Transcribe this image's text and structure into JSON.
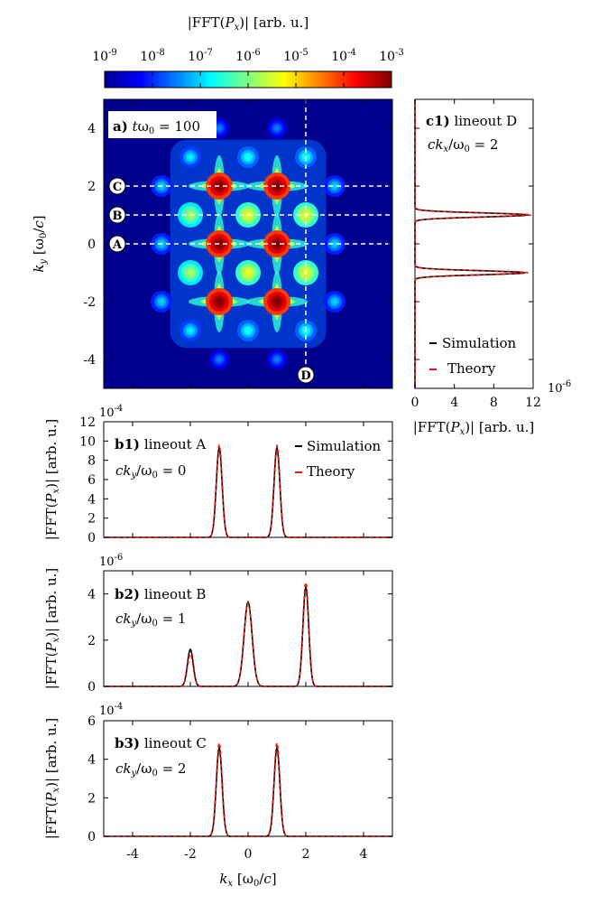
{
  "chart_data": [
    {
      "id": "colorbar",
      "type": "colorbar",
      "title": "|FFT(P_x)| [arb. u.]",
      "scale": "log",
      "range": [
        1e-09,
        0.001
      ],
      "tick_labels": [
        "10-9",
        "10-8",
        "10-7",
        "10-6",
        "10-5",
        "10-4",
        "10-3"
      ],
      "colormap": [
        "#00008f",
        "#0000ff",
        "#00ffff",
        "#ffff00",
        "#ff0000",
        "#800000"
      ]
    },
    {
      "id": "a",
      "type": "heatmap",
      "panel_label": "a)",
      "annotation": "tω0 = 100",
      "xlim": [
        -5,
        5
      ],
      "ylim": [
        -5,
        5
      ],
      "ylabel": "k_y [ω0/c]",
      "y_ticks": [
        "-4",
        "-2",
        "0",
        "2",
        "4"
      ],
      "lineouts": [
        {
          "label": "A",
          "orientation": "horizontal",
          "ky": 0
        },
        {
          "label": "B",
          "orientation": "horizontal",
          "ky": 1
        },
        {
          "label": "C",
          "orientation": "horizontal",
          "ky": 2
        },
        {
          "label": "D",
          "orientation": "vertical",
          "kx": 2
        }
      ],
      "peaks": [
        {
          "kx": -1,
          "ky": 0,
          "log10": -3.0
        },
        {
          "kx": 1,
          "ky": 0,
          "log10": -3.0
        },
        {
          "kx": -1,
          "ky": 2,
          "log10": -3.0
        },
        {
          "kx": 1,
          "ky": 2,
          "log10": -3.0
        },
        {
          "kx": -1,
          "ky": -2,
          "log10": -3.0
        },
        {
          "kx": 1,
          "ky": -2,
          "log10": -3.0
        },
        {
          "kx": 0,
          "ky": 1,
          "log10": -5.4
        },
        {
          "kx": -2,
          "ky": 1,
          "log10": -5.8
        },
        {
          "kx": 2,
          "ky": 1,
          "log10": -5.4
        },
        {
          "kx": 0,
          "ky": -1,
          "log10": -5.4
        },
        {
          "kx": -2,
          "ky": -1,
          "log10": -5.8
        },
        {
          "kx": 2,
          "ky": -1,
          "log10": -5.4
        },
        {
          "kx": 0,
          "ky": 3,
          "log10": -6.6
        },
        {
          "kx": -2,
          "ky": 3,
          "log10": -6.8
        },
        {
          "kx": 2,
          "ky": 3,
          "log10": -6.6
        },
        {
          "kx": 0,
          "ky": -3,
          "log10": -6.6
        },
        {
          "kx": -2,
          "ky": -3,
          "log10": -6.8
        },
        {
          "kx": 2,
          "ky": -3,
          "log10": -6.6
        },
        {
          "kx": -3,
          "ky": 2,
          "log10": -7.0
        },
        {
          "kx": 3,
          "ky": 2,
          "log10": -7.0
        },
        {
          "kx": -3,
          "ky": 0,
          "log10": -7.0
        },
        {
          "kx": 3,
          "ky": 0,
          "log10": -7.0
        },
        {
          "kx": -3,
          "ky": -2,
          "log10": -7.0
        },
        {
          "kx": 3,
          "ky": -2,
          "log10": -7.0
        },
        {
          "kx": -1,
          "ky": 4,
          "log10": -7.5
        },
        {
          "kx": 1,
          "ky": 4,
          "log10": -7.5
        },
        {
          "kx": -1,
          "ky": -4,
          "log10": -7.5
        },
        {
          "kx": 1,
          "ky": -4,
          "log10": -7.5
        }
      ]
    },
    {
      "id": "c1",
      "type": "line",
      "panel_label": "c1)",
      "title": "lineout D",
      "subtitle": "ckx/ω0 = 2",
      "xlabel": "|FFT(P_x)| [arb. u.]",
      "x_multiplier": "10-6",
      "xlim": [
        0,
        12
      ],
      "x_ticks": [
        "0",
        "4",
        "8",
        "12"
      ],
      "legend": [
        "Simulation",
        "Theory"
      ],
      "series": [
        {
          "name": "Simulation",
          "peaks": [
            {
              "ky": 1,
              "amp": 11.5,
              "width": 0.07
            },
            {
              "ky": -1,
              "amp": 11.2,
              "width": 0.07
            }
          ]
        },
        {
          "name": "Theory",
          "peaks": [
            {
              "ky": 1,
              "amp": 11.8,
              "width": 0.07
            },
            {
              "ky": -1,
              "amp": 11.5,
              "width": 0.07
            }
          ]
        }
      ]
    },
    {
      "id": "b1",
      "type": "line",
      "panel_label": "b1)",
      "title": "lineout A",
      "subtitle": "cky/ω0 = 0",
      "ylabel": "|FFT(P_x)| [arb. u.]",
      "y_multiplier": "10-4",
      "xlim": [
        -5,
        5
      ],
      "ylim": [
        0,
        12
      ],
      "y_ticks": [
        "0",
        "2",
        "4",
        "6",
        "8",
        "10",
        "12"
      ],
      "legend": [
        "Simulation",
        "Theory"
      ],
      "series": [
        {
          "name": "Simulation",
          "peaks": [
            {
              "kx": -1,
              "amp": 9.3,
              "width": 0.1
            },
            {
              "kx": 1,
              "amp": 9.3,
              "width": 0.1
            }
          ]
        },
        {
          "name": "Theory",
          "peaks": [
            {
              "kx": -1,
              "amp": 9.6,
              "width": 0.1
            },
            {
              "kx": 1,
              "amp": 9.6,
              "width": 0.1
            }
          ]
        }
      ]
    },
    {
      "id": "b2",
      "type": "line",
      "panel_label": "b2)",
      "title": "lineout B",
      "subtitle": "cky/ω0 = 1",
      "ylabel": "|FFT(P_x)| [arb. u.]",
      "y_multiplier": "10-6",
      "xlim": [
        -5,
        5
      ],
      "ylim": [
        0,
        5
      ],
      "y_ticks": [
        "0",
        "2",
        "4"
      ],
      "series": [
        {
          "name": "Simulation",
          "peaks": [
            {
              "kx": -2,
              "amp": 1.6,
              "width": 0.1
            },
            {
              "kx": 0,
              "amp": 3.65,
              "width": 0.14
            },
            {
              "kx": 2,
              "amp": 4.3,
              "width": 0.1
            }
          ]
        },
        {
          "name": "Theory",
          "peaks": [
            {
              "kx": -2,
              "amp": 1.4,
              "width": 0.1
            },
            {
              "kx": 0,
              "amp": 3.6,
              "width": 0.14
            },
            {
              "kx": 2,
              "amp": 4.5,
              "width": 0.1
            }
          ]
        }
      ]
    },
    {
      "id": "b3",
      "type": "line",
      "panel_label": "b3)",
      "title": "lineout C",
      "subtitle": "cky/ω0 = 2",
      "ylabel": "|FFT(P_x)| [arb. u.]",
      "y_multiplier": "10-4",
      "xlabel": "k_x [ω0/c]",
      "xlim": [
        -5,
        5
      ],
      "ylim": [
        0,
        6
      ],
      "y_ticks": [
        "0",
        "2",
        "4",
        "6"
      ],
      "x_ticks": [
        "-4",
        "-2",
        "0",
        "2",
        "4"
      ],
      "series": [
        {
          "name": "Simulation",
          "peaks": [
            {
              "kx": -1,
              "amp": 4.6,
              "width": 0.1
            },
            {
              "kx": 1,
              "amp": 4.6,
              "width": 0.1
            }
          ]
        },
        {
          "name": "Theory",
          "peaks": [
            {
              "kx": -1,
              "amp": 4.85,
              "width": 0.1
            },
            {
              "kx": 1,
              "amp": 4.85,
              "width": 0.1
            }
          ]
        }
      ]
    }
  ]
}
